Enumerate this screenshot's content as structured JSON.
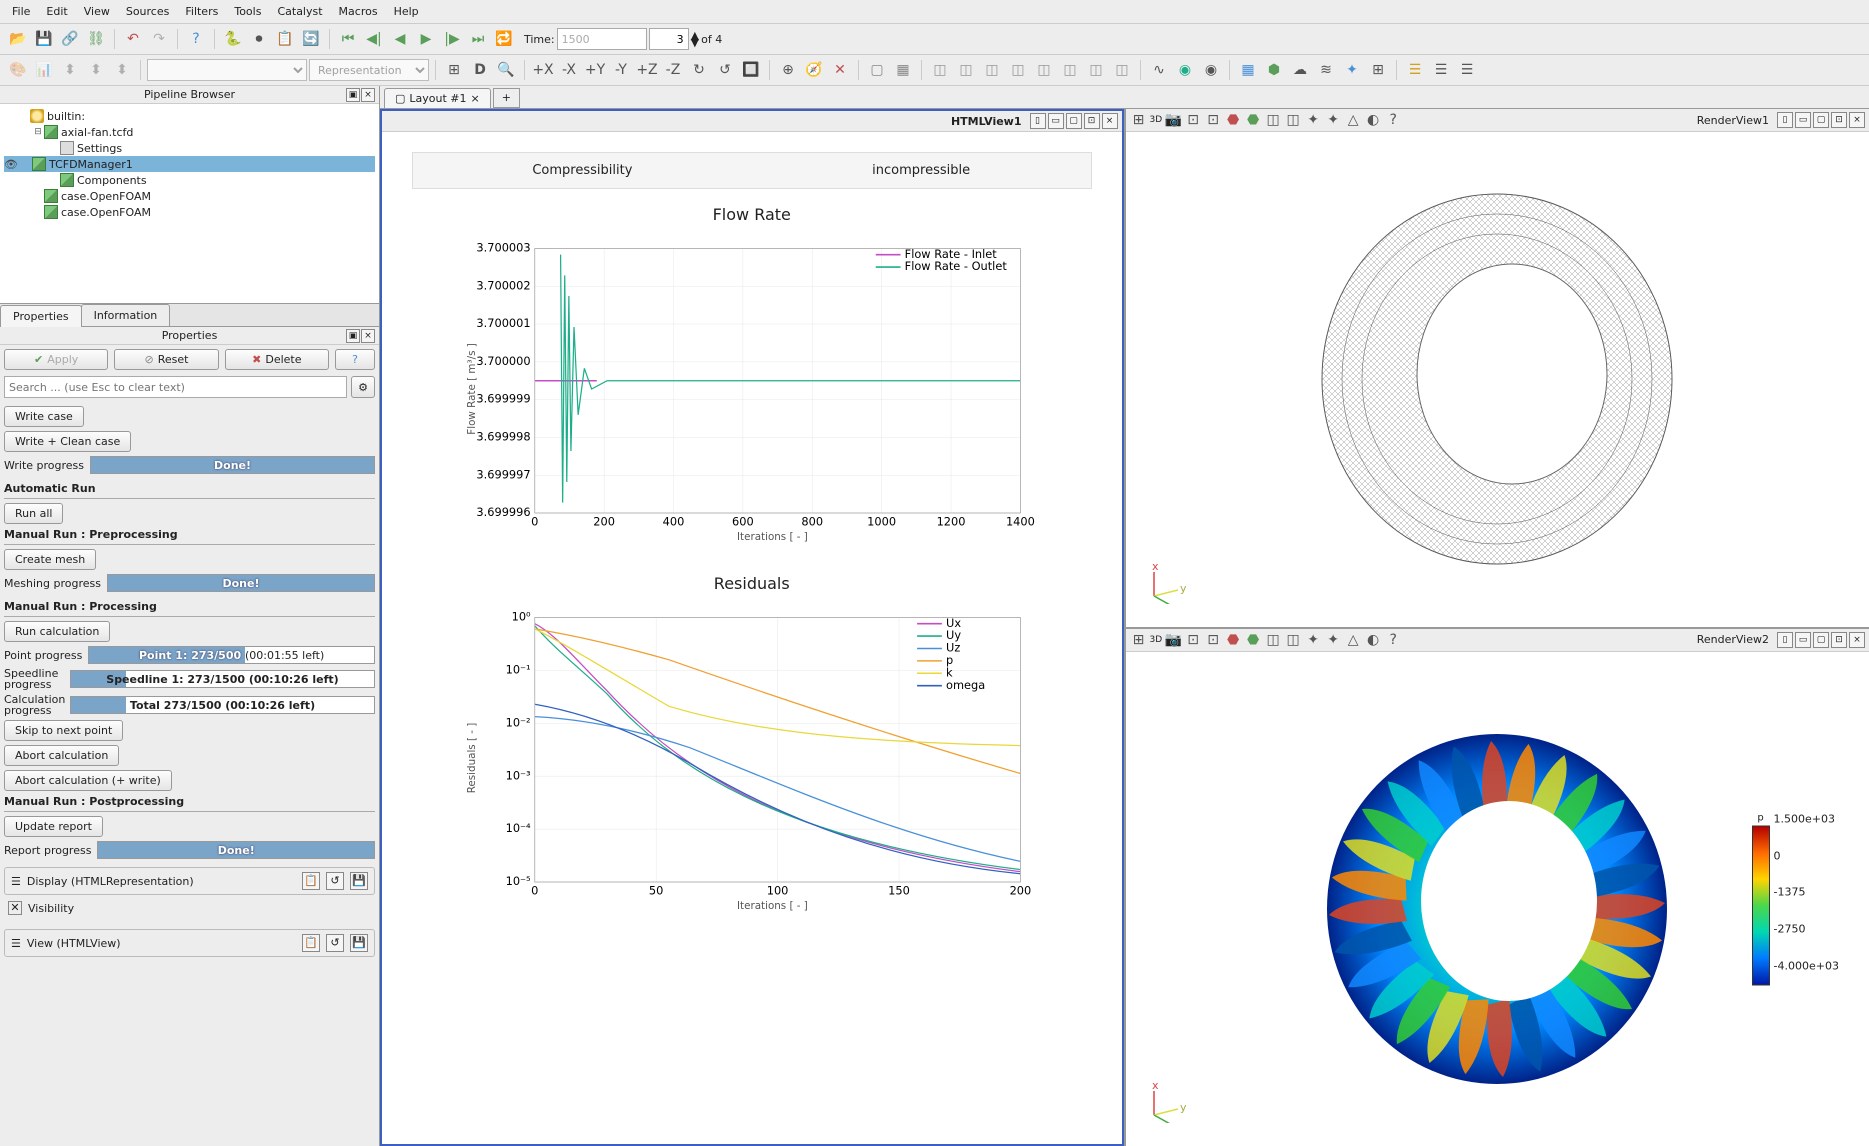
{
  "menu": {
    "file": "File",
    "edit": "Edit",
    "view": "View",
    "sources": "Sources",
    "filters": "Filters",
    "tools": "Tools",
    "catalyst": "Catalyst",
    "macros": "Macros",
    "help": "Help"
  },
  "toolbar1": {
    "time_label": "Time:",
    "time_value": "1500",
    "frame": "3",
    "frame_of": "of 4"
  },
  "toolbar2": {
    "repr": "Representation"
  },
  "pipeline": {
    "title": "Pipeline Browser",
    "root": "builtin:",
    "items": [
      {
        "label": "axial-fan.tcfd",
        "icon": "cube",
        "children": [
          {
            "label": "Settings",
            "icon": "set"
          },
          {
            "label": "TCFDManager1",
            "icon": "cube",
            "selected": true
          },
          {
            "label": "Components",
            "icon": "cube"
          }
        ]
      },
      {
        "label": "case.OpenFOAM",
        "icon": "cube"
      },
      {
        "label": "case.OpenFOAM",
        "icon": "cube"
      }
    ]
  },
  "tabs": {
    "properties": "Properties",
    "information": "Information"
  },
  "props": {
    "title": "Properties",
    "apply": "Apply",
    "reset": "Reset",
    "delete": "Delete",
    "search_ph": "Search ... (use Esc to clear text)",
    "write_case": "Write case",
    "write_clean": "Write + Clean case",
    "write_prog_lbl": "Write progress",
    "done": "Done!",
    "auto_run": "Automatic Run",
    "run_all": "Run all",
    "preproc": "Manual Run : Preprocessing",
    "create_mesh": "Create mesh",
    "mesh_prog_lbl": "Meshing progress",
    "proc": "Manual Run : Processing",
    "run_calc": "Run calculation",
    "point_prog_lbl": "Point progress",
    "point_prog_txt": "Point 1: 273/500",
    "point_prog_pct": 54.6,
    "point_prog_eta": "(00:01:55 left)",
    "speed_prog_lbl": "Speedline progress",
    "speed_prog_txt": "Speedline 1: 273/1500 (00:10:26 left)",
    "speed_prog_pct": 18.2,
    "calc_prog_lbl": "Calculation progress",
    "calc_prog_txt": "Total 273/1500 (00:10:26 left)",
    "calc_prog_pct": 18.2,
    "skip": "Skip to next point",
    "abort": "Abort calculation",
    "abort_write": "Abort calculation (+ write)",
    "postproc": "Manual Run : Postprocessing",
    "update_report": "Update report",
    "report_prog_lbl": "Report progress",
    "display": "Display (HTMLRepresentation)",
    "visibility": "Visibility",
    "view": "View (HTMLView)"
  },
  "layout": {
    "tab": "Layout #1"
  },
  "views": {
    "rv1": "RenderView1",
    "rv2": "RenderView2",
    "hv": "HTMLView1"
  },
  "colorbar": {
    "title": "p",
    "ticks": [
      "1.500e+03",
      "0",
      "-1375",
      "-2750",
      "-4.000e+03"
    ]
  },
  "html": {
    "compressibility": "Compressibility",
    "incompressible": "incompressible",
    "flow_rate_title": "Flow Rate",
    "residuals_title": "Residuals",
    "flow_chart": {
      "ylabel": "Flow Rate [ m³/s ]",
      "xlabel": "Iterations [ - ]",
      "yticks": [
        "3.700003",
        "3.700002",
        "3.700001",
        "3.700000",
        "3.699999",
        "3.699998",
        "3.699997",
        "3.699996"
      ],
      "xticks": [
        "0",
        "200",
        "400",
        "600",
        "800",
        "1000",
        "1200",
        "1400"
      ],
      "legend": [
        {
          "label": "Flow Rate - Inlet",
          "color": "#c44dc4"
        },
        {
          "label": "Flow Rate - Outlet",
          "color": "#1fae8a"
        }
      ],
      "inlet_color": "#c44dc4",
      "outlet_color": "#1fae8a",
      "grid_color": "#e8e8e8"
    },
    "res_chart": {
      "ylabel": "Residuals [ - ]",
      "xlabel": "Iterations [ - ]",
      "yticks": [
        "10⁰",
        "10⁻¹",
        "10⁻²",
        "10⁻³",
        "10⁻⁴",
        "10⁻⁵"
      ],
      "xticks": [
        "0",
        "50",
        "100",
        "150",
        "200"
      ],
      "legend": [
        {
          "label": "Ux",
          "color": "#c44dc4"
        },
        {
          "label": "Uy",
          "color": "#1fae8a"
        },
        {
          "label": "Uz",
          "color": "#4a90d9"
        },
        {
          "label": "p",
          "color": "#f0a030"
        },
        {
          "label": "k",
          "color": "#e8d838"
        },
        {
          "label": "omega",
          "color": "#3060c0"
        }
      ],
      "grid_color": "#e8e8e8"
    }
  }
}
